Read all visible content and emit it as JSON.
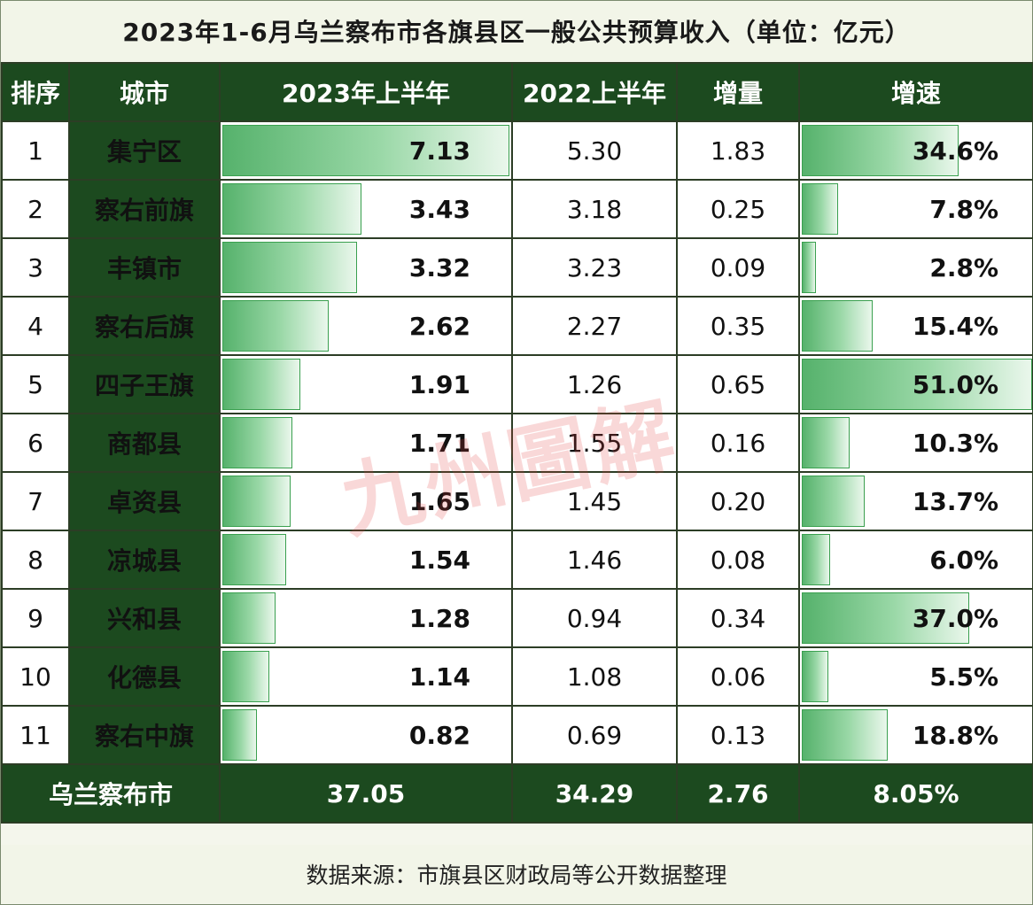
{
  "title": "2023年1-6月乌兰察布市各旗县区一般公共预算收入（单位：亿元）",
  "headers": {
    "rank": "排序",
    "city": "城市",
    "h2023": "2023年上半年",
    "h2022": "2022上半年",
    "increase": "增量",
    "growth": "增速"
  },
  "chart_data": {
    "type": "table",
    "title": "2023年1-6月乌兰察布市各旗县区一般公共预算收入（单位：亿元）",
    "columns": [
      "排序",
      "城市",
      "2023年上半年",
      "2022上半年",
      "增量",
      "增速"
    ],
    "rows": [
      {
        "rank": "1",
        "city": "集宁区",
        "v2023": 7.13,
        "v2023_text": "7.13",
        "v2022": "5.30",
        "increase": "1.83",
        "growth": 34.6,
        "growth_text": "34.6%"
      },
      {
        "rank": "2",
        "city": "察右前旗",
        "v2023": 3.43,
        "v2023_text": "3.43",
        "v2022": "3.18",
        "increase": "0.25",
        "growth": 7.8,
        "growth_text": "7.8%"
      },
      {
        "rank": "3",
        "city": "丰镇市",
        "v2023": 3.32,
        "v2023_text": "3.32",
        "v2022": "3.23",
        "increase": "0.09",
        "growth": 2.8,
        "growth_text": "2.8%"
      },
      {
        "rank": "4",
        "city": "察右后旗",
        "v2023": 2.62,
        "v2023_text": "2.62",
        "v2022": "2.27",
        "increase": "0.35",
        "growth": 15.4,
        "growth_text": "15.4%"
      },
      {
        "rank": "5",
        "city": "四子王旗",
        "v2023": 1.91,
        "v2023_text": "1.91",
        "v2022": "1.26",
        "increase": "0.65",
        "growth": 51.0,
        "growth_text": "51.0%"
      },
      {
        "rank": "6",
        "city": "商都县",
        "v2023": 1.71,
        "v2023_text": "1.71",
        "v2022": "1.55",
        "increase": "0.16",
        "growth": 10.3,
        "growth_text": "10.3%"
      },
      {
        "rank": "7",
        "city": "卓资县",
        "v2023": 1.65,
        "v2023_text": "1.65",
        "v2022": "1.45",
        "increase": "0.20",
        "growth": 13.7,
        "growth_text": "13.7%"
      },
      {
        "rank": "8",
        "city": "凉城县",
        "v2023": 1.54,
        "v2023_text": "1.54",
        "v2022": "1.46",
        "increase": "0.08",
        "growth": 6.0,
        "growth_text": "6.0%"
      },
      {
        "rank": "9",
        "city": "兴和县",
        "v2023": 1.28,
        "v2023_text": "1.28",
        "v2022": "0.94",
        "increase": "0.34",
        "growth": 37.0,
        "growth_text": "37.0%"
      },
      {
        "rank": "10",
        "city": "化德县",
        "v2023": 1.14,
        "v2023_text": "1.14",
        "v2022": "1.08",
        "increase": "0.06",
        "growth": 5.5,
        "growth_text": "5.5%"
      },
      {
        "rank": "11",
        "city": "察右中旗",
        "v2023": 0.82,
        "v2023_text": "0.82",
        "v2022": "0.69",
        "increase": "0.13",
        "growth": 18.8,
        "growth_text": "18.8%"
      }
    ],
    "total": {
      "city": "乌兰察布市",
      "v2023": "37.05",
      "v2022": "34.29",
      "increase": "2.76",
      "growth": "8.05%"
    }
  },
  "source": "数据来源：市旗县区财政局等公开数据整理",
  "watermark": "九州圖解",
  "colors": {
    "header_bg": "#1c4a1f",
    "bar": "#56b26c",
    "watermark": "#e23c3c"
  }
}
